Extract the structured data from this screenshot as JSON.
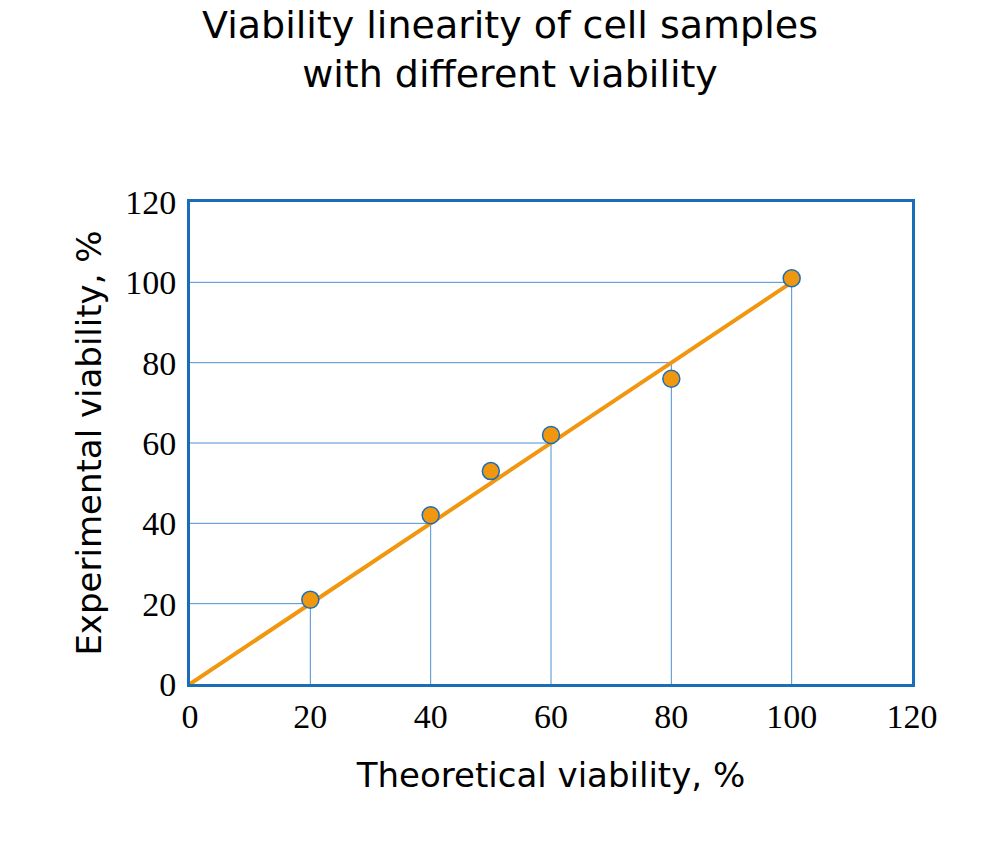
{
  "chart_data": {
    "type": "scatter",
    "title": [
      "Viability linearity of cell samples",
      "with different viability"
    ],
    "x_label": "Theoretical viability, %",
    "y_label": "Experimental viability, %",
    "xlim": [
      0,
      120
    ],
    "ylim": [
      0,
      120
    ],
    "xticks": [
      0,
      20,
      40,
      60,
      80,
      100,
      120
    ],
    "yticks": [
      0,
      20,
      40,
      60,
      80,
      100,
      120
    ],
    "grid": false,
    "series": [
      {
        "type": "line",
        "color": "#f0960f",
        "line_style": "solid",
        "x": [
          0,
          100
        ],
        "values": [
          0,
          100
        ]
      },
      {
        "type": "scatter",
        "color": "#f0960f",
        "marker": "circle",
        "x": [
          20,
          40,
          50,
          60,
          80,
          100
        ],
        "values": [
          21,
          42,
          53,
          62,
          76,
          101
        ]
      }
    ]
  }
}
